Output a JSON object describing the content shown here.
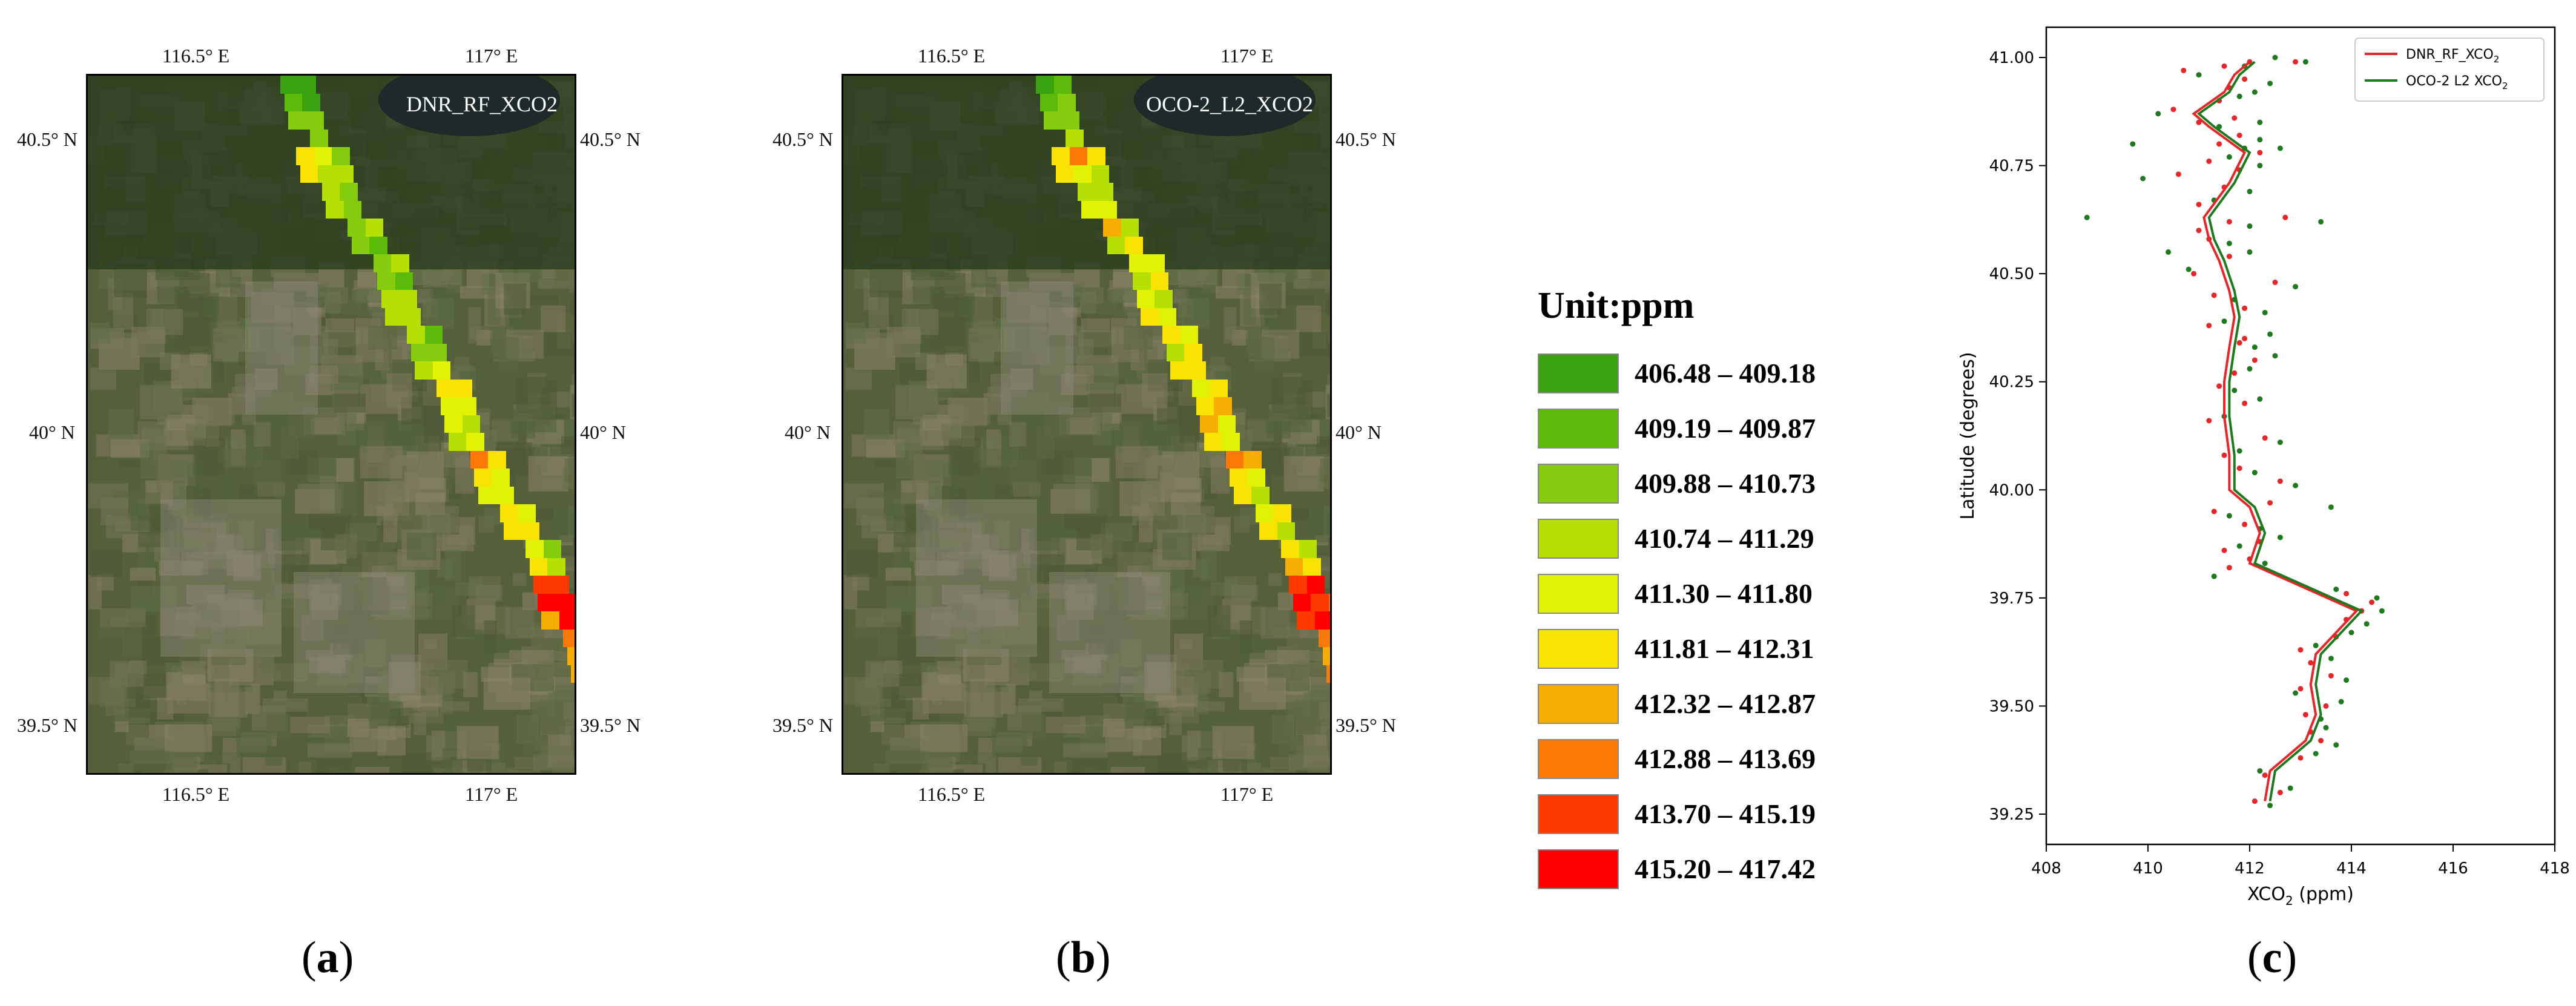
{
  "colors": {
    "c1": "#3aa20f",
    "c2": "#5cba09",
    "c3": "#84cc0d",
    "c4": "#b6df03",
    "c5": "#e2f205",
    "c6": "#f9e303",
    "c7": "#f8ad03",
    "c8": "#fb7a07",
    "c9": "#fe3a00",
    "c10": "#ff0000",
    "line_rf": "#e4272b",
    "line_oco": "#1f7a1f"
  },
  "maps": [
    {
      "title": "DNR_RF_XCO2",
      "caption_open": "(",
      "caption_letter": "a",
      "caption_close": ")",
      "top_ticks": [
        "116.5° E",
        "117° E"
      ],
      "bottom_ticks": [
        "116.5° E",
        "117° E"
      ],
      "left_ticks": [
        "40.5° N",
        "40° N",
        "39.5° N"
      ],
      "right_ticks": [
        "40.5° N",
        "40° N",
        "39.5° N"
      ]
    },
    {
      "title": "OCO-2_L2_XCO2",
      "caption_open": "(",
      "caption_letter": "b",
      "caption_close": ")",
      "top_ticks": [
        "116.5° E",
        "117° E"
      ],
      "bottom_ticks": [
        "116.5° E",
        "117° E"
      ],
      "left_ticks": [
        "40.5° N",
        "40° N",
        "39.5° N"
      ],
      "right_ticks": [
        "40.5° N",
        "40° N",
        "39.5° N"
      ]
    }
  ],
  "legend": {
    "title": "Unit:ppm",
    "items": [
      {
        "label": "406.48 – 409.18",
        "color": "#3aa20f"
      },
      {
        "label": "409.19 – 409.87",
        "color": "#5cba09"
      },
      {
        "label": "409.88 – 410.73",
        "color": "#84cc0d"
      },
      {
        "label": "410.74 – 411.29",
        "color": "#b6df03"
      },
      {
        "label": "411.30 – 411.80",
        "color": "#e2f205"
      },
      {
        "label": "411.81 – 412.31",
        "color": "#f9e303"
      },
      {
        "label": "412.32 – 412.87",
        "color": "#f8ad03"
      },
      {
        "label": "412.88 – 413.69",
        "color": "#fb7a07"
      },
      {
        "label": "413.70 – 415.19",
        "color": "#fe3a00"
      },
      {
        "label": "415.20 – 417.42",
        "color": "#ff0000"
      }
    ]
  },
  "profile_caption": {
    "open": "(",
    "letter": "c",
    "close": ")"
  },
  "chart_data": {
    "type": "line",
    "xlabel_main": "XCO",
    "xlabel_sub": "2",
    "xlabel_unit": " (ppm)",
    "ylabel": "Latitude (degrees)",
    "xlim": [
      408,
      418
    ],
    "ylim": [
      39.18,
      41.07
    ],
    "x_ticks": [
      "408",
      "410",
      "412",
      "414",
      "416",
      "418"
    ],
    "y_ticks": [
      "39.25",
      "39.50",
      "39.75",
      "40.00",
      "40.25",
      "40.50",
      "40.75",
      "41.00"
    ],
    "grid": false,
    "legend_position": "top-right",
    "legend_entries": [
      {
        "prefix": "DNR_RF_XCO",
        "sub": "2"
      },
      {
        "prefix": "OCO-2 L2 XCO",
        "sub": "2"
      }
    ],
    "series": [
      {
        "name": "DNR_RF_XCO2",
        "x": [
          412.3,
          412.4,
          413.1,
          413.3,
          413.2,
          413.3,
          413.7,
          414.1,
          412.0,
          412.2,
          412.0,
          411.6,
          411.6,
          411.5,
          411.5,
          411.6,
          411.7,
          411.6,
          411.4,
          411.2,
          411.1,
          411.6,
          411.9,
          411.2,
          410.9,
          411.5,
          411.7,
          412.0
        ],
        "y": [
          39.28,
          39.35,
          39.42,
          39.48,
          39.55,
          39.62,
          39.67,
          39.72,
          39.83,
          39.9,
          39.96,
          40.0,
          40.08,
          40.17,
          40.25,
          40.33,
          40.4,
          40.46,
          40.53,
          40.58,
          40.63,
          40.71,
          40.78,
          40.84,
          40.87,
          40.92,
          40.96,
          40.99
        ]
      },
      {
        "name": "OCO-2 L2 XCO2",
        "x": [
          412.4,
          412.5,
          413.2,
          413.4,
          413.3,
          413.4,
          413.8,
          414.2,
          412.1,
          412.3,
          412.1,
          411.7,
          411.7,
          411.6,
          411.6,
          411.7,
          411.8,
          411.7,
          411.5,
          411.3,
          411.2,
          411.7,
          412.0,
          411.3,
          411.0,
          411.6,
          411.8,
          412.1
        ],
        "y": [
          39.28,
          39.35,
          39.42,
          39.48,
          39.55,
          39.62,
          39.67,
          39.72,
          39.83,
          39.9,
          39.96,
          40.0,
          40.08,
          40.17,
          40.25,
          40.33,
          40.4,
          40.46,
          40.53,
          40.58,
          40.63,
          40.71,
          40.78,
          40.84,
          40.87,
          40.92,
          40.96,
          40.99
        ]
      }
    ],
    "scatter_rf": {
      "x": [
        412.1,
        412.6,
        412.3,
        413.0,
        413.4,
        413.2,
        413.1,
        413.5,
        413.0,
        413.6,
        413.2,
        413.0,
        413.7,
        413.9,
        414.2,
        414.4,
        413.9,
        411.6,
        412.0,
        411.5,
        412.2,
        411.9,
        411.3,
        412.4,
        412.6,
        411.8,
        411.5,
        412.3,
        411.2,
        411.9,
        411.4,
        411.7,
        412.1,
        411.8,
        411.2,
        411.9,
        411.3,
        412.5,
        410.9,
        411.6,
        411.2,
        412.7,
        411.0,
        411.5,
        410.6,
        411.2,
        412.2,
        411.8,
        411.0,
        410.5,
        411.4,
        411.6,
        411.9,
        410.7,
        411.5,
        412.0,
        411.7,
        411.4,
        411.8,
        412.9,
        411.6,
        411.9,
        411.0
      ],
      "y": [
        39.28,
        39.3,
        39.34,
        39.38,
        39.42,
        39.44,
        39.48,
        39.5,
        39.54,
        39.57,
        39.6,
        39.63,
        39.66,
        39.7,
        39.72,
        39.74,
        39.76,
        39.82,
        39.84,
        39.86,
        39.88,
        39.92,
        39.95,
        39.97,
        40.02,
        40.05,
        40.08,
        40.12,
        40.16,
        40.2,
        40.24,
        40.27,
        40.3,
        40.34,
        40.38,
        40.42,
        40.45,
        40.48,
        40.5,
        40.54,
        40.58,
        40.63,
        40.66,
        40.7,
        40.73,
        40.76,
        40.78,
        40.82,
        40.85,
        40.88,
        40.9,
        40.93,
        40.95,
        40.97,
        40.98,
        40.99,
        40.86,
        40.8,
        40.74,
        40.99,
        40.62,
        40.35,
        40.6
      ]
    },
    "scatter_oco": {
      "x": [
        412.4,
        412.8,
        412.2,
        413.3,
        413.7,
        413.5,
        413.4,
        413.8,
        412.9,
        413.9,
        413.6,
        413.3,
        414.0,
        414.3,
        414.6,
        414.5,
        413.7,
        411.3,
        412.3,
        411.8,
        412.6,
        412.2,
        411.6,
        413.6,
        412.9,
        412.1,
        411.8,
        412.6,
        411.5,
        412.2,
        411.7,
        412.0,
        412.5,
        412.1,
        411.5,
        412.3,
        411.7,
        412.9,
        410.8,
        412.0,
        411.6,
        413.4,
        411.3,
        412.0,
        409.9,
        411.6,
        412.6,
        412.2,
        411.4,
        410.2,
        411.8,
        412.1,
        412.4,
        411.0,
        411.9,
        412.5,
        412.2,
        411.9,
        412.2,
        413.1,
        412.0,
        412.4,
        408.8,
        409.7,
        410.4
      ],
      "y": [
        39.27,
        39.31,
        39.35,
        39.39,
        39.41,
        39.45,
        39.47,
        39.51,
        39.53,
        39.56,
        39.61,
        39.64,
        39.67,
        39.69,
        39.72,
        39.75,
        39.77,
        39.8,
        39.83,
        39.87,
        39.89,
        39.91,
        39.94,
        39.96,
        40.01,
        40.04,
        40.09,
        40.11,
        40.17,
        40.21,
        40.23,
        40.28,
        40.31,
        40.33,
        40.39,
        40.41,
        40.44,
        40.47,
        40.51,
        40.55,
        40.57,
        40.62,
        40.67,
        40.69,
        40.72,
        40.77,
        40.79,
        40.81,
        40.84,
        40.87,
        40.91,
        40.92,
        40.94,
        40.96,
        40.98,
        41.0,
        40.85,
        40.79,
        40.75,
        40.99,
        40.61,
        40.36,
        40.63,
        40.8,
        40.55
      ]
    }
  }
}
